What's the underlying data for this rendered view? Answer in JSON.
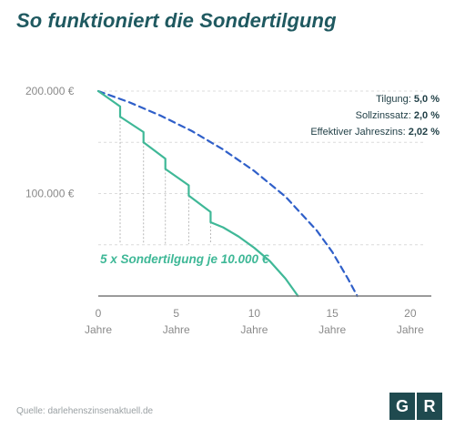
{
  "title": "So funktioniert die Sondertilgung",
  "source": "Quelle: darlehenszinsenaktuell.de",
  "logo": {
    "left": "G",
    "right": "R"
  },
  "colors": {
    "title": "#1f5960",
    "green_series": "#3fb897",
    "blue_series": "#2f5fc9",
    "axis": "#7a7a7a",
    "logo_bg": "#1f4a4f"
  },
  "chart_data": {
    "type": "line",
    "y_ticks": [
      {
        "value": 200000,
        "label": "200.000 €"
      },
      {
        "value": 100000,
        "label": "100.000 €"
      }
    ],
    "x_ticks": [
      {
        "value": 0,
        "label": "0",
        "sub": "Jahre"
      },
      {
        "value": 5,
        "label": "5",
        "sub": "Jahre"
      },
      {
        "value": 10,
        "label": "10",
        "sub": "Jahre"
      },
      {
        "value": 15,
        "label": "15",
        "sub": "Jahre"
      },
      {
        "value": 20,
        "label": "20",
        "sub": "Jahre"
      }
    ],
    "xlim": [
      0,
      21
    ],
    "ylim": [
      0,
      200000
    ],
    "grid": "horizontal dashed",
    "info_lines": [
      {
        "label": "Tilgung: ",
        "value": "5,0 %"
      },
      {
        "label": "Sollzinssatz: ",
        "value": "2,0 %"
      },
      {
        "label": "Effektiver Jahreszins: ",
        "value": "2,02 %"
      }
    ],
    "annotation": "5 x Sondertilgung je 10.000 €",
    "series": [
      {
        "style": "dashed",
        "color": "#2f5fc9",
        "x": [
          0,
          2,
          4,
          6,
          8,
          10,
          12,
          14,
          15,
          16,
          16.6
        ],
        "y": [
          200000,
          189000,
          176000,
          161000,
          143000,
          122000,
          97000,
          64000,
          43000,
          17000,
          0
        ]
      },
      {
        "style": "solid",
        "color": "#3fb897",
        "x": [
          0,
          1.4,
          1.4,
          2.9,
          2.9,
          4.3,
          4.3,
          5.8,
          5.8,
          7.2,
          7.2,
          8,
          9,
          10,
          11,
          12,
          12.8
        ],
        "y": [
          200000,
          185000,
          175000,
          160000,
          150000,
          134000,
          124000,
          108000,
          98000,
          82000,
          72000,
          67000,
          58000,
          47000,
          34000,
          17000,
          0
        ]
      }
    ],
    "sondertilgung_x": [
      1.4,
      2.9,
      4.3,
      5.8,
      7.2
    ]
  }
}
